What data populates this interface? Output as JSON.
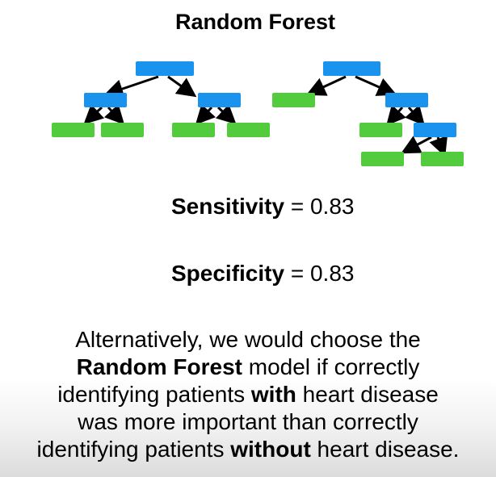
{
  "title": "Random Forest",
  "colors": {
    "decision_node": "#1a93ee",
    "leaf_node": "#52cc3c",
    "arrow": "#000000"
  },
  "metrics": {
    "sensitivity": {
      "label": "Sensitivity",
      "equals": " = ",
      "value": "0.83"
    },
    "specificity": {
      "label": "Specificity",
      "equals": " = ",
      "value": "0.83"
    }
  },
  "paragraph": {
    "line1": "Alternatively, we would choose the",
    "line2_bold": "Random Forest",
    "line2_rest": " model if correctly",
    "line3_pre": "identifying patients ",
    "line3_bold": "with",
    "line3_post": " heart disease",
    "line4": "was more important than correctly",
    "line5_pre": "identifying patients ",
    "line5_bold": "without",
    "line5_post": " heart disease."
  }
}
